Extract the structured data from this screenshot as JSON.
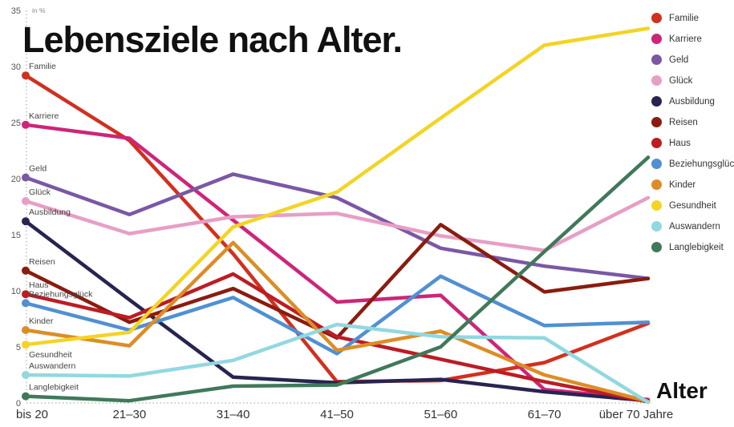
{
  "title": "Lebensziele nach Alter.",
  "unit_label": "in %",
  "x_axis_label": "Alter",
  "chart_data": {
    "type": "line",
    "categories": [
      "bis 20",
      "21–30",
      "31–40",
      "41–50",
      "51–60",
      "61–70",
      "über 70 Jahre"
    ],
    "ylim": [
      0,
      35
    ],
    "yticks": [
      35,
      30,
      25,
      20,
      15,
      10,
      5,
      0
    ],
    "grid": "dotted y-axis and baseline only",
    "legend_position": "top-right",
    "series": [
      {
        "name": "Familie",
        "color": "#d1301f",
        "values": [
          29.2,
          23.4,
          13.3,
          1.9,
          2.0,
          3.6,
          7.1
        ]
      },
      {
        "name": "Karriere",
        "color": "#cd2579",
        "values": [
          24.8,
          23.6,
          16.3,
          9.0,
          9.6,
          1.2,
          0.3
        ]
      },
      {
        "name": "Geld",
        "color": "#7a58a5",
        "values": [
          20.1,
          16.8,
          20.4,
          18.3,
          13.8,
          12.2,
          11.1
        ]
      },
      {
        "name": "Glück",
        "color": "#e79ec5",
        "values": [
          18.0,
          15.1,
          16.6,
          16.9,
          14.9,
          13.6,
          18.3
        ]
      },
      {
        "name": "Ausbildung",
        "color": "#272451",
        "values": [
          16.2,
          9.2,
          2.3,
          1.8,
          2.1,
          1.0,
          0.2
        ]
      },
      {
        "name": "Reisen",
        "color": "#8a1c10",
        "values": [
          11.8,
          7.2,
          10.2,
          5.8,
          15.9,
          9.9,
          11.1
        ]
      },
      {
        "name": "Haus",
        "color": "#bc1c24",
        "values": [
          9.7,
          7.6,
          11.5,
          5.9,
          3.9,
          1.9,
          0.1
        ]
      },
      {
        "name": "Beziehungsglück",
        "color": "#5090d3",
        "values": [
          8.9,
          6.5,
          9.4,
          4.4,
          11.3,
          6.9,
          7.2
        ]
      },
      {
        "name": "Kinder",
        "color": "#dc8d26",
        "values": [
          6.5,
          5.1,
          14.3,
          4.7,
          6.4,
          2.5,
          0.15
        ]
      },
      {
        "name": "Gesundheit",
        "color": "#f3d425",
        "values": [
          5.2,
          6.3,
          15.7,
          18.8,
          25.4,
          31.9,
          33.4
        ]
      },
      {
        "name": "Auswandern",
        "color": "#92d8e1",
        "values": [
          2.5,
          2.4,
          3.8,
          7.0,
          5.9,
          5.8,
          0.05
        ]
      },
      {
        "name": "Langlebigkeit",
        "color": "#40795a",
        "values": [
          0.6,
          0.2,
          1.5,
          1.6,
          5.0,
          13.5,
          21.9
        ]
      }
    ]
  }
}
